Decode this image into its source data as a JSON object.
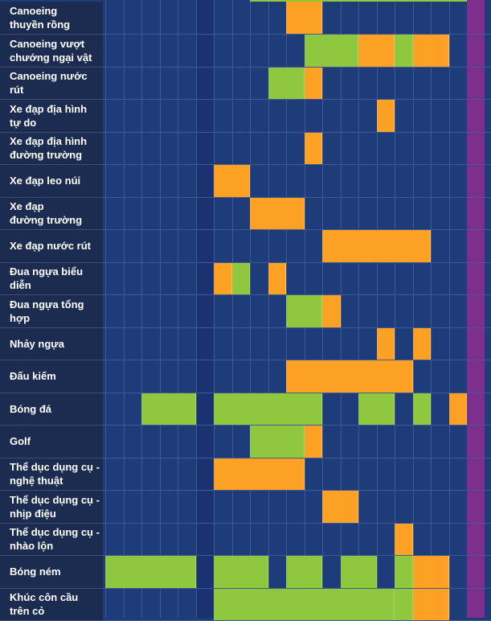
{
  "palette": {
    "orange": "#fca123",
    "green": "#8fc73e",
    "purple": "#7c2f8c",
    "navy": "#1f3c7a",
    "label_bg": "#1c2c50"
  },
  "columns": 20,
  "top_partial": {
    "green_from": 9,
    "green_to": 20
  },
  "rows": [
    {
      "label": "Canoeing\nthuyền rồng",
      "cells": [
        [
          11,
          12,
          "orange"
        ]
      ]
    },
    {
      "label": "Canoeing vượt\nchướng ngại vật",
      "cells": [
        [
          12,
          14,
          "green"
        ],
        [
          15,
          16,
          "orange"
        ],
        [
          17,
          17,
          "green"
        ],
        [
          18,
          19,
          "orange"
        ]
      ]
    },
    {
      "label": "Canoeing nước rút",
      "cells": [
        [
          10,
          11,
          "green"
        ],
        [
          12,
          12,
          "orange"
        ]
      ]
    },
    {
      "label": "Xe đạp địa hình\ntự do",
      "cells": [
        [
          16,
          16,
          "orange"
        ]
      ]
    },
    {
      "label": "Xe đạp địa hình\nđường trường",
      "cells": [
        [
          12,
          12,
          "orange"
        ]
      ]
    },
    {
      "label": "Xe đạp leo núi",
      "cells": [
        [
          7,
          8,
          "orange"
        ]
      ]
    },
    {
      "label": "Xe đạp\nđường trường",
      "cells": [
        [
          9,
          11,
          "orange"
        ]
      ]
    },
    {
      "label": "Xe đạp nước rút",
      "cells": [
        [
          13,
          18,
          "orange"
        ]
      ]
    },
    {
      "label": "Đua ngựa biểu diễn",
      "cells": [
        [
          7,
          7,
          "orange"
        ],
        [
          8,
          8,
          "green"
        ],
        [
          10,
          10,
          "orange"
        ]
      ]
    },
    {
      "label": "Đua ngựa tổng hợp",
      "cells": [
        [
          11,
          12,
          "green"
        ],
        [
          13,
          13,
          "orange"
        ]
      ]
    },
    {
      "label": "Nhảy ngựa",
      "cells": [
        [
          16,
          16,
          "orange"
        ],
        [
          18,
          18,
          "orange"
        ]
      ]
    },
    {
      "label": "Đấu kiếm",
      "cells": [
        [
          11,
          17,
          "orange"
        ]
      ]
    },
    {
      "label": "Bóng đá",
      "cells": [
        [
          3,
          5,
          "green"
        ],
        [
          7,
          12,
          "green"
        ],
        [
          15,
          16,
          "green"
        ],
        [
          18,
          18,
          "green"
        ],
        [
          20,
          20,
          "orange"
        ]
      ]
    },
    {
      "label": "Golf",
      "cells": [
        [
          9,
          11,
          "green"
        ],
        [
          12,
          12,
          "orange"
        ]
      ]
    },
    {
      "label": "Thể dục dụng cụ -\nnghệ thuật",
      "cells": [
        [
          7,
          11,
          "orange"
        ]
      ]
    },
    {
      "label": "Thể dục dụng cụ -\nnhịp điệu",
      "cells": [
        [
          13,
          14,
          "orange"
        ]
      ]
    },
    {
      "label": "Thể dục dụng cụ -\nnhào lộn",
      "cells": [
        [
          17,
          17,
          "orange"
        ]
      ]
    },
    {
      "label": "Bóng ném",
      "cells": [
        [
          1,
          5,
          "green"
        ],
        [
          7,
          9,
          "green"
        ],
        [
          11,
          12,
          "green"
        ],
        [
          14,
          15,
          "green"
        ],
        [
          17,
          17,
          "green"
        ],
        [
          18,
          19,
          "orange"
        ]
      ]
    },
    {
      "label": "Khúc côn cầu\ntrên cỏ",
      "cells": [
        [
          7,
          16,
          "green"
        ],
        [
          17,
          17,
          "green"
        ],
        [
          18,
          19,
          "orange"
        ]
      ]
    }
  ]
}
